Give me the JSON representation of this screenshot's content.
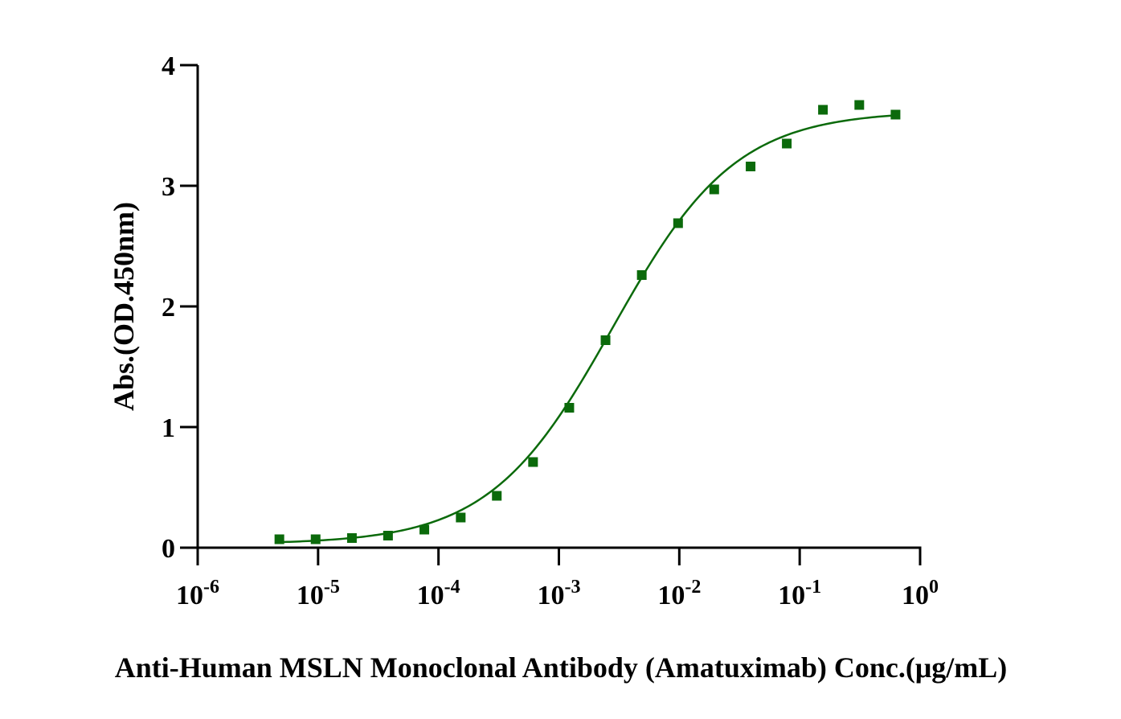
{
  "chart_data": {
    "type": "scatter",
    "title": "",
    "xlabel": "Anti-Human MSLN Monoclonal Antibody (Amatuximab)  Conc.(μg/mL)",
    "ylabel": "Abs.(OD.450nm)",
    "xscale": "log10",
    "xlim": [
      1e-06,
      1
    ],
    "ylim": [
      0,
      4
    ],
    "x_ticks": [
      {
        "base": "10",
        "exp": "-6"
      },
      {
        "base": "10",
        "exp": "-5"
      },
      {
        "base": "10",
        "exp": "-4"
      },
      {
        "base": "10",
        "exp": "-3"
      },
      {
        "base": "10",
        "exp": "-2"
      },
      {
        "base": "10",
        "exp": "-1"
      },
      {
        "base": "10",
        "exp": "0"
      }
    ],
    "y_ticks": [
      "0",
      "1",
      "2",
      "3",
      "4"
    ],
    "grid": false,
    "series": [
      {
        "name": "Anti-Human MSLN Monoclonal Antibody (Amatuximab)",
        "color": "#0b6a0b",
        "marker": "square",
        "x": [
          4.77e-06,
          9.54e-06,
          1.91e-05,
          3.81e-05,
          7.63e-05,
          0.000153,
          0.000305,
          0.00061,
          0.00122,
          0.00244,
          0.00488,
          0.00977,
          0.0195,
          0.0391,
          0.0781,
          0.156,
          0.3125,
          0.625
        ],
        "values": [
          0.07,
          0.07,
          0.08,
          0.1,
          0.15,
          0.25,
          0.43,
          0.71,
          1.16,
          1.72,
          2.26,
          2.69,
          2.97,
          3.16,
          3.35,
          3.63,
          3.67,
          3.59
        ]
      }
    ],
    "fit_curve": {
      "type": "4PL",
      "color": "#0b6a0b",
      "bottom": 0.03,
      "top": 3.62,
      "ec50": 0.0028,
      "hill": 0.85,
      "x_range": [
        4.77e-06,
        0.625
      ]
    }
  }
}
